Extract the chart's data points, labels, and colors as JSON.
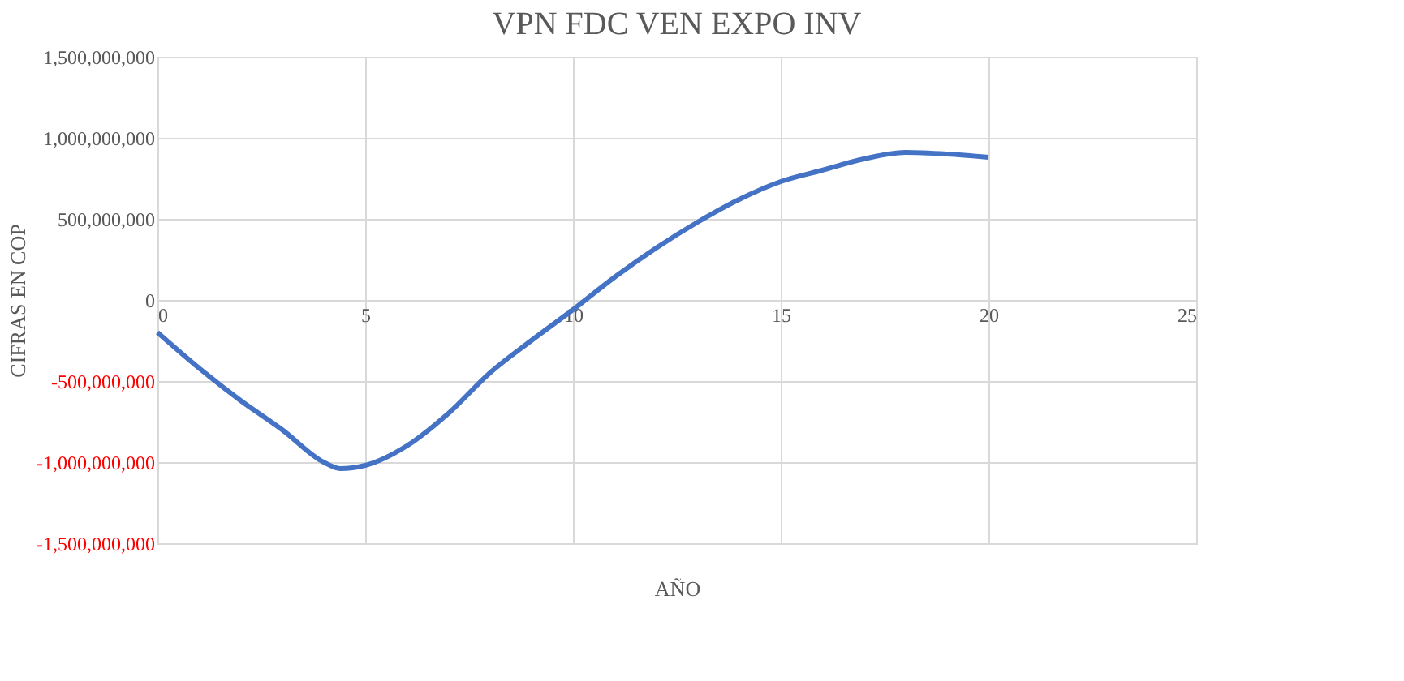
{
  "chart_data": {
    "type": "line",
    "title": "VPN  FDC VEN EXPO INV",
    "xlabel": "AÑO",
    "ylabel": "CIFRAS EN COP",
    "x": [
      0,
      1,
      2,
      3,
      4,
      4.4,
      5,
      6,
      7,
      8,
      9,
      10,
      11,
      12,
      13,
      14,
      15,
      16,
      17,
      18,
      19,
      20
    ],
    "series": [
      {
        "color": "#4472c4",
        "values": [
          -200000000,
          -420000000,
          -620000000,
          -800000000,
          -1000000000,
          -1040000000,
          -1020000000,
          -900000000,
          -700000000,
          -450000000,
          -250000000,
          -60000000,
          140000000,
          320000000,
          480000000,
          620000000,
          730000000,
          800000000,
          870000000,
          910000000,
          900000000,
          880000000
        ]
      }
    ],
    "xlim": [
      0,
      25
    ],
    "xticks": [
      0,
      5,
      10,
      15,
      20,
      25
    ],
    "ylim": [
      -1500000000,
      1500000000
    ],
    "yticks": [
      {
        "value": -1500000000,
        "label": "-1,500,000,000"
      },
      {
        "value": -1000000000,
        "label": "-1,000,000,000"
      },
      {
        "value": -500000000,
        "label": "-500,000,000"
      },
      0,
      {
        "value": 500000000,
        "label": "500,000,000"
      },
      {
        "value": 1000000000,
        "label": "1,000,000,000"
      },
      {
        "value": 1500000000,
        "label": "1,500,000,000"
      }
    ],
    "grid": true,
    "marker": "none",
    "line_style": "solid"
  }
}
